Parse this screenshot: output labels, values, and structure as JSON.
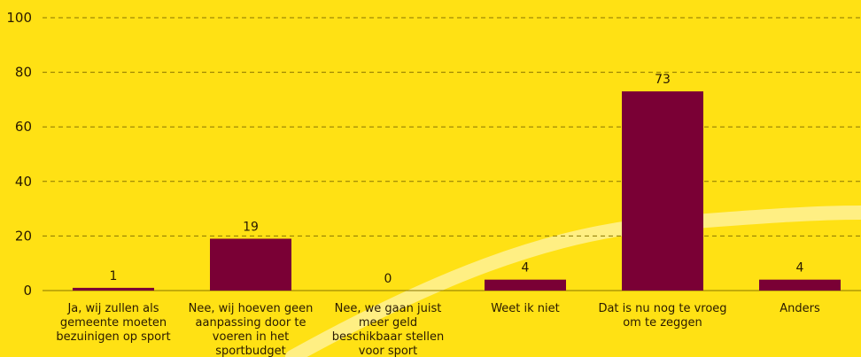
{
  "chart_data": {
    "type": "bar",
    "categories": [
      [
        "Ja, wij zullen als",
        "gemeente moeten",
        "bezuinigen op sport"
      ],
      [
        "Nee, wij hoeven geen",
        "aanpassing door te",
        "voeren in het",
        "sportbudget"
      ],
      [
        "Nee, we gaan juist",
        "meer geld",
        "beschikbaar stellen",
        "voor sport"
      ],
      [
        "Weet ik niet"
      ],
      [
        "Dat is nu nog te vroeg",
        "om te zeggen"
      ],
      [
        "Anders"
      ]
    ],
    "values": [
      1,
      19,
      0,
      4,
      73,
      4
    ],
    "data_labels": [
      "1",
      "19",
      "0",
      "4",
      "73",
      "4"
    ],
    "yticks": [
      "0",
      "20",
      "40",
      "60",
      "80",
      "100"
    ],
    "ylim": [
      0,
      100
    ],
    "grid": true,
    "title": "",
    "xlabel": "",
    "ylabel": ""
  },
  "colors": {
    "background": "#FFE114",
    "bar": "#7A0035",
    "grid": "#8a7500",
    "text": "#2a1a00",
    "swoosh": "#FFF3A8"
  }
}
